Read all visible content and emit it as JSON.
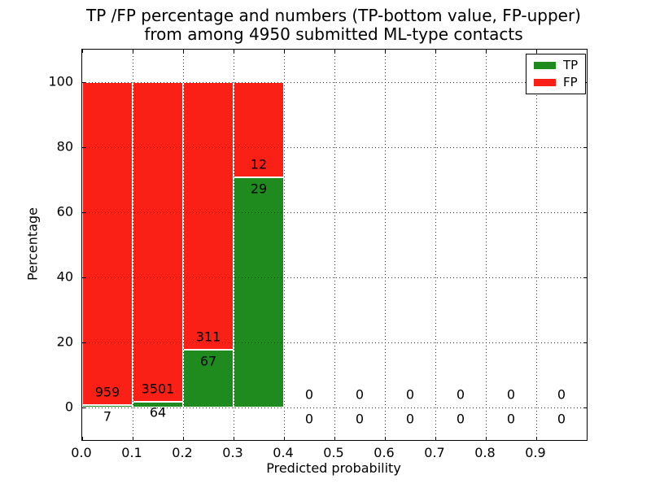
{
  "title": {
    "line1": "TP /FP percentage and numbers (TP-bottom value, FP-upper)",
    "line2": "from among 4950 submitted ML-type contacts"
  },
  "axes": {
    "xlabel": "Predicted probability",
    "ylabel": "Percentage",
    "x_ticks": [
      "0.0",
      "0.1",
      "0.2",
      "0.3",
      "0.4",
      "0.5",
      "0.6",
      "0.7",
      "0.8",
      "0.9"
    ],
    "y_ticks": [
      "0",
      "20",
      "40",
      "60",
      "80",
      "100"
    ],
    "xlim": [
      0.0,
      1.0
    ],
    "ylim": [
      -10,
      110
    ],
    "grid_style": "dotted"
  },
  "legend": {
    "position": "upper-right",
    "items": [
      {
        "label": "TP",
        "color": "#1f8b1f"
      },
      {
        "label": "FP",
        "color": "#fa2016"
      }
    ]
  },
  "chart_data": {
    "type": "bar",
    "stacked": true,
    "title": "TP /FP percentage and numbers (TP-bottom value, FP-upper) from among 4950 submitted ML-type contacts",
    "xlabel": "Predicted probability",
    "ylabel": "Percentage",
    "xlim": [
      0.0,
      1.0
    ],
    "ylim": [
      -10,
      110
    ],
    "bin_width": 0.1,
    "legend_entries": [
      "TP",
      "FP"
    ],
    "colors": {
      "tp": "#1f8b1f",
      "fp": "#fa2016"
    },
    "bins": [
      {
        "x_start": 0.0,
        "x_end": 0.1,
        "tp_count": 7,
        "fp_count": 959,
        "tp_pct": 0.72,
        "fp_pct": 99.28
      },
      {
        "x_start": 0.1,
        "x_end": 0.2,
        "tp_count": 64,
        "fp_count": 3501,
        "tp_pct": 1.8,
        "fp_pct": 98.2
      },
      {
        "x_start": 0.2,
        "x_end": 0.3,
        "tp_count": 67,
        "fp_count": 311,
        "tp_pct": 17.72,
        "fp_pct": 82.28
      },
      {
        "x_start": 0.3,
        "x_end": 0.4,
        "tp_count": 29,
        "fp_count": 12,
        "tp_pct": 70.73,
        "fp_pct": 29.27
      },
      {
        "x_start": 0.4,
        "x_end": 0.5,
        "tp_count": 0,
        "fp_count": 0,
        "tp_pct": 0,
        "fp_pct": 0
      },
      {
        "x_start": 0.5,
        "x_end": 0.6,
        "tp_count": 0,
        "fp_count": 0,
        "tp_pct": 0,
        "fp_pct": 0
      },
      {
        "x_start": 0.6,
        "x_end": 0.7,
        "tp_count": 0,
        "fp_count": 0,
        "tp_pct": 0,
        "fp_pct": 0
      },
      {
        "x_start": 0.7,
        "x_end": 0.8,
        "tp_count": 0,
        "fp_count": 0,
        "tp_pct": 0,
        "fp_pct": 0
      },
      {
        "x_start": 0.8,
        "x_end": 0.9,
        "tp_count": 0,
        "fp_count": 0,
        "tp_pct": 0,
        "fp_pct": 0
      },
      {
        "x_start": 0.9,
        "x_end": 1.0,
        "tp_count": 0,
        "fp_count": 0,
        "tp_pct": 0,
        "fp_pct": 0
      }
    ]
  }
}
